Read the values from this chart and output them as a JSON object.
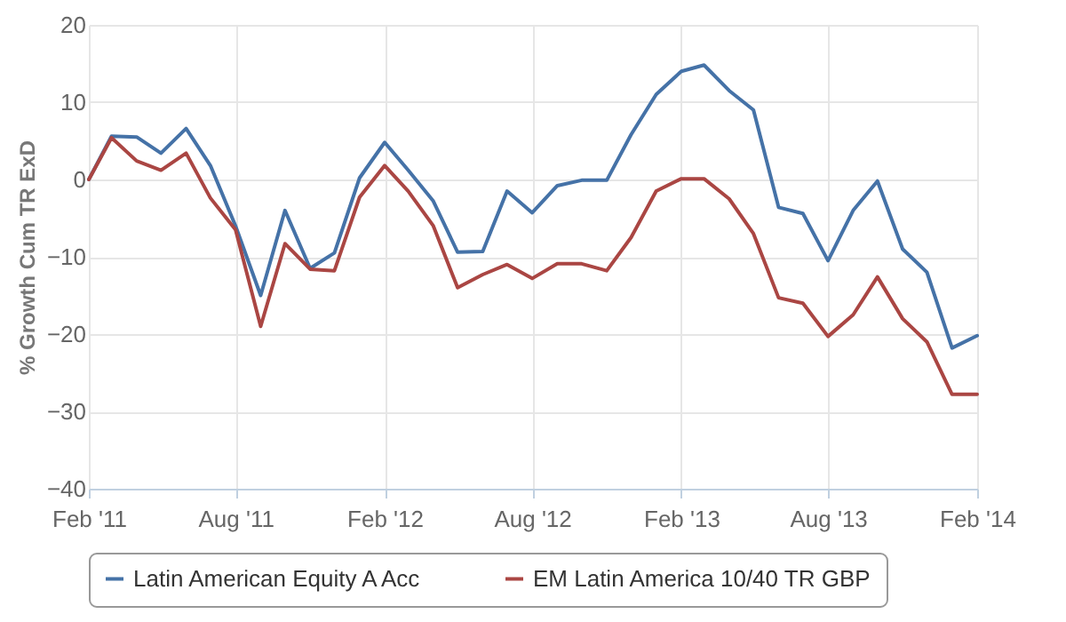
{
  "chart_data": {
    "type": "line",
    "ylabel": "% Growth Cum TR ExD",
    "x": [
      "2011-02",
      "2011-03",
      "2011-04",
      "2011-05",
      "2011-06",
      "2011-07",
      "2011-08",
      "2011-09",
      "2011-10",
      "2011-11",
      "2011-12",
      "2012-01",
      "2012-02",
      "2012-03",
      "2012-04",
      "2012-05",
      "2012-06",
      "2012-07",
      "2012-08",
      "2012-09",
      "2012-10",
      "2012-11",
      "2012-12",
      "2013-01",
      "2013-02",
      "2013-03",
      "2013-04",
      "2013-05",
      "2013-06",
      "2013-07",
      "2013-08",
      "2013-09",
      "2013-10",
      "2013-11",
      "2013-12",
      "2014-01",
      "2014-02"
    ],
    "series": [
      {
        "name": "Latin American Equity A Acc",
        "color": "#4572a7",
        "values": [
          0,
          5.6,
          5.5,
          3.4,
          6.6,
          1.8,
          -6,
          -15,
          -4,
          -11.5,
          -9.5,
          0.2,
          4.8,
          1.2,
          -2.8,
          -9.4,
          -9.3,
          -1.5,
          -4.3,
          -0.8,
          -0.1,
          -0.1,
          5.8,
          11,
          14,
          14.8,
          11.5,
          9,
          -3.6,
          -4.4,
          -10.5,
          -4,
          -0.2,
          -9,
          -12,
          -21.8,
          -20.2
        ]
      },
      {
        "name": "EM Latin America 10/40 TR GBP",
        "color": "#aa4643",
        "values": [
          0,
          5.4,
          2.4,
          1.2,
          3.4,
          -2.4,
          -6.5,
          -19,
          -8.3,
          -11.6,
          -11.8,
          -2.3,
          1.8,
          -1.5,
          -6,
          -14,
          -12.3,
          -11,
          -12.8,
          -10.9,
          -10.9,
          -11.8,
          -7.5,
          -1.5,
          0.1,
          0.1,
          -2.5,
          -7,
          -15.3,
          -16,
          -20.3,
          -17.5,
          -12.6,
          -18,
          -21,
          -27.8,
          -27.8
        ]
      }
    ],
    "xlim": [
      "2011-02",
      "2014-02"
    ],
    "xticks": [
      {
        "value": "2011-02",
        "label": "Feb '11"
      },
      {
        "value": "2011-08",
        "label": "Aug '11"
      },
      {
        "value": "2012-02",
        "label": "Feb '12"
      },
      {
        "value": "2012-08",
        "label": "Aug '12"
      },
      {
        "value": "2013-02",
        "label": "Feb '13"
      },
      {
        "value": "2013-08",
        "label": "Aug '13"
      },
      {
        "value": "2014-02",
        "label": "Feb '14"
      }
    ],
    "ylim": [
      -40,
      20
    ],
    "yticks": [
      -40,
      -30,
      -20,
      -10,
      0,
      10,
      20
    ],
    "grid": true,
    "legend": "bottom",
    "marker": "none",
    "line_style": "solid"
  }
}
